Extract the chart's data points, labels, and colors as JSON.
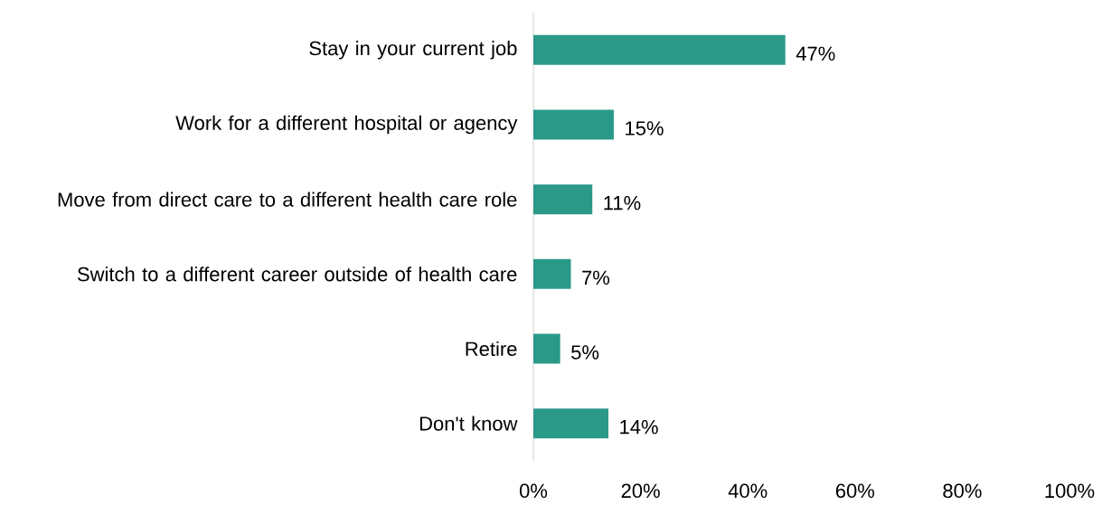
{
  "chart_data": {
    "type": "bar",
    "orientation": "horizontal",
    "categories": [
      "Stay in your current job",
      "Work for a different hospital or agency",
      "Move from direct care to a different health care role",
      "Switch to a different career outside of health care",
      "Retire",
      "Don't know"
    ],
    "values": [
      47,
      15,
      11,
      7,
      5,
      14
    ],
    "value_labels": [
      "47%",
      "15%",
      "11%",
      "7%",
      "5%",
      "14%"
    ],
    "color": "#2a9988",
    "xlim": [
      0,
      100
    ],
    "xticks": [
      {
        "value": 0,
        "label": "0%"
      },
      {
        "value": 20,
        "label": "20%"
      },
      {
        "value": 40,
        "label": "40%"
      },
      {
        "value": 60,
        "label": "60%"
      },
      {
        "value": 80,
        "label": "80%"
      },
      {
        "value": 100,
        "label": "100%"
      }
    ],
    "data_labels": false
  }
}
